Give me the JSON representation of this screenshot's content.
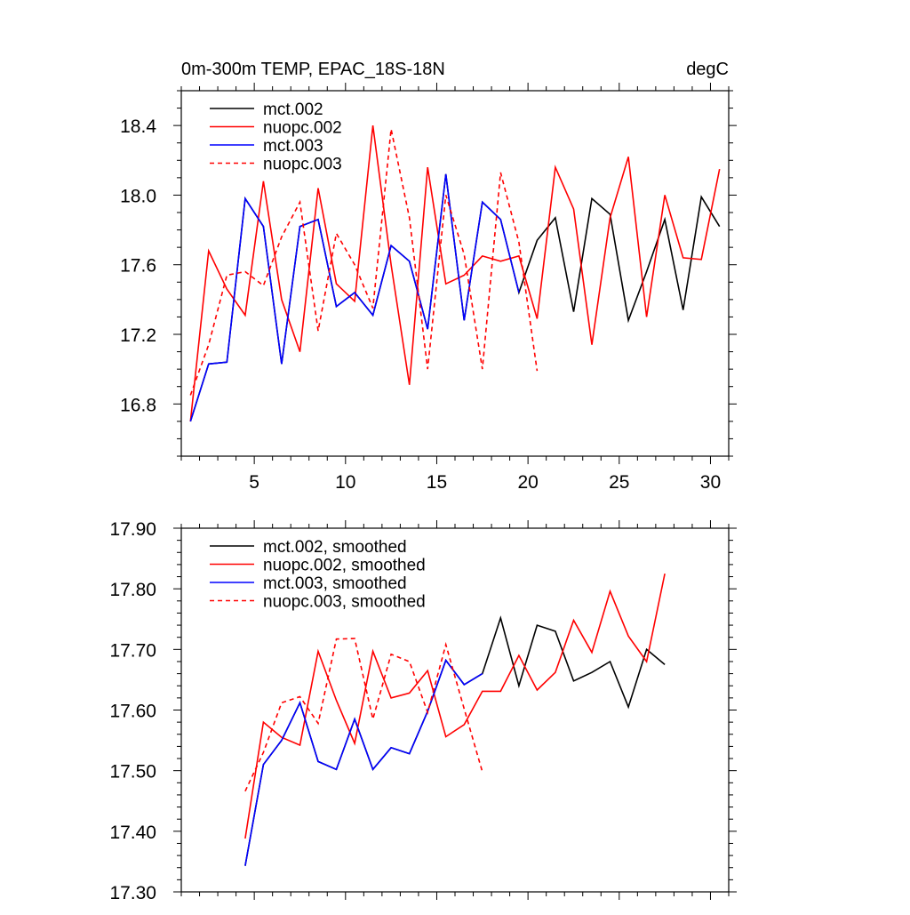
{
  "chart_data": [
    {
      "type": "line",
      "title_left": "0m-300m TEMP, EPAC_18S-18N",
      "title_right": "degC",
      "xlabel": "",
      "ylabel": "",
      "xlim": [
        1,
        31
      ],
      "ylim": [
        16.5,
        18.6
      ],
      "xticks": [
        5,
        10,
        15,
        20,
        25,
        30
      ],
      "xtick_labels": [
        "5",
        "10",
        "15",
        "20",
        "25",
        "30"
      ],
      "yticks": [
        16.8,
        17.2,
        17.6,
        18.0,
        18.4
      ],
      "ytick_labels": [
        "16.8",
        "17.2",
        "17.6",
        "18.0",
        "18.4"
      ],
      "legend_position": "top-left",
      "series": [
        {
          "name": "mct.002",
          "color": "#000000",
          "dash": "solid",
          "x": [
            1.5,
            2.5,
            3.5,
            4.5,
            5.5,
            6.5,
            7.5,
            8.5,
            9.5,
            10.5,
            11.5,
            12.5,
            13.5,
            14.5,
            15.5,
            16.5,
            17.5,
            18.5,
            19.5,
            20.5,
            21.5,
            22.5,
            23.5,
            24.5,
            25.5,
            26.5,
            27.5,
            28.5,
            29.5,
            30.5
          ],
          "values": [
            16.7,
            17.03,
            17.04,
            17.98,
            17.82,
            17.03,
            17.82,
            17.86,
            17.36,
            17.44,
            17.31,
            17.71,
            17.62,
            17.23,
            18.12,
            17.28,
            17.96,
            17.86,
            17.44,
            17.74,
            17.87,
            17.33,
            17.98,
            17.89,
            17.28,
            17.56,
            17.86,
            17.34,
            17.99,
            17.82
          ]
        },
        {
          "name": "nuopc.002",
          "color": "#ff0000",
          "dash": "solid",
          "x": [
            1.5,
            2.5,
            3.5,
            4.5,
            5.5,
            6.5,
            7.5,
            8.5,
            9.5,
            10.5,
            11.5,
            12.5,
            13.5,
            14.5,
            15.5,
            16.5,
            17.5,
            18.5,
            19.5,
            20.5,
            21.5,
            22.5,
            23.5,
            24.5,
            25.5,
            26.5,
            27.5,
            28.5,
            29.5,
            30.5
          ],
          "values": [
            16.7,
            17.68,
            17.46,
            17.31,
            18.08,
            17.4,
            17.1,
            18.04,
            17.49,
            17.39,
            18.4,
            17.6,
            16.91,
            18.16,
            17.49,
            17.54,
            17.65,
            17.62,
            17.65,
            17.29,
            18.16,
            17.92,
            17.14,
            17.87,
            18.22,
            17.3,
            18.0,
            17.64,
            17.63,
            18.15
          ]
        },
        {
          "name": "mct.003",
          "color": "#0000ff",
          "dash": "solid",
          "x": [
            1.5,
            2.5,
            3.5,
            4.5,
            5.5,
            6.5,
            7.5,
            8.5,
            9.5,
            10.5,
            11.5,
            12.5,
            13.5,
            14.5,
            15.5,
            16.5,
            17.5,
            18.5,
            19.5
          ],
          "values": [
            16.7,
            17.03,
            17.04,
            17.98,
            17.82,
            17.03,
            17.82,
            17.86,
            17.36,
            17.44,
            17.31,
            17.71,
            17.62,
            17.23,
            18.12,
            17.28,
            17.96,
            17.86,
            17.44
          ]
        },
        {
          "name": "nuopc.003",
          "color": "#ff0000",
          "dash": "dashed",
          "x": [
            1.5,
            2.5,
            3.5,
            4.5,
            5.5,
            6.5,
            7.5,
            8.5,
            9.5,
            10.5,
            11.5,
            12.5,
            13.5,
            14.5,
            15.5,
            16.5,
            17.5,
            18.5,
            19.5,
            20.5
          ],
          "values": [
            16.85,
            17.14,
            17.54,
            17.56,
            17.48,
            17.76,
            17.96,
            17.22,
            17.78,
            17.6,
            17.35,
            18.38,
            17.87,
            17.0,
            18.0,
            17.66,
            17.0,
            18.13,
            17.73,
            16.99
          ]
        }
      ]
    },
    {
      "type": "line",
      "title_left": "",
      "title_right": "",
      "xlabel": "",
      "ylabel": "",
      "xlim": [
        1,
        31
      ],
      "ylim": [
        17.3,
        17.9
      ],
      "xticks": [
        5,
        10,
        15,
        20,
        25,
        30
      ],
      "xtick_labels": [],
      "yticks": [
        17.3,
        17.4,
        17.5,
        17.6,
        17.7,
        17.8,
        17.9
      ],
      "ytick_labels": [
        "17.30",
        "17.40",
        "17.50",
        "17.60",
        "17.70",
        "17.80",
        "17.90"
      ],
      "legend_position": "top-left",
      "series": [
        {
          "name": "mct.002, smoothed",
          "color": "#000000",
          "dash": "solid",
          "x": [
            4.5,
            5.5,
            6.5,
            7.5,
            8.5,
            9.5,
            10.5,
            11.5,
            12.5,
            13.5,
            14.5,
            15.5,
            16.5,
            17.5,
            18.5,
            19.5,
            20.5,
            21.5,
            22.5,
            23.5,
            24.5,
            25.5,
            26.5,
            27.5
          ],
          "values": [
            17.343,
            17.51,
            17.55,
            17.612,
            17.515,
            17.502,
            17.585,
            17.502,
            17.538,
            17.528,
            17.598,
            17.682,
            17.642,
            17.66,
            17.752,
            17.64,
            17.74,
            17.73,
            17.648,
            17.662,
            17.68,
            17.605,
            17.7,
            17.675
          ]
        },
        {
          "name": "nuopc.002, smoothed",
          "color": "#ff0000",
          "dash": "solid",
          "x": [
            4.5,
            5.5,
            6.5,
            7.5,
            8.5,
            9.5,
            10.5,
            11.5,
            12.5,
            13.5,
            14.5,
            15.5,
            16.5,
            17.5,
            18.5,
            19.5,
            20.5,
            21.5,
            22.5,
            23.5,
            24.5,
            25.5,
            26.5,
            27.5
          ],
          "values": [
            17.388,
            17.58,
            17.555,
            17.542,
            17.697,
            17.616,
            17.545,
            17.697,
            17.62,
            17.628,
            17.665,
            17.556,
            17.576,
            17.631,
            17.631,
            17.69,
            17.633,
            17.662,
            17.748,
            17.695,
            17.796,
            17.722,
            17.68,
            17.825
          ]
        },
        {
          "name": "mct.003, smoothed",
          "color": "#0000ff",
          "dash": "solid",
          "x": [
            4.5,
            5.5,
            6.5,
            7.5,
            8.5,
            9.5,
            10.5,
            11.5,
            12.5,
            13.5,
            14.5,
            15.5,
            16.5,
            17.5
          ],
          "values": [
            17.343,
            17.51,
            17.55,
            17.612,
            17.515,
            17.502,
            17.585,
            17.502,
            17.538,
            17.528,
            17.598,
            17.682,
            17.642,
            17.66
          ]
        },
        {
          "name": "nuopc.003, smoothed",
          "color": "#ff0000",
          "dash": "dashed",
          "x": [
            4.5,
            5.5,
            6.5,
            7.5,
            8.5,
            9.5,
            10.5,
            11.5,
            12.5,
            13.5,
            14.5,
            15.5,
            16.5,
            17.5
          ],
          "values": [
            17.466,
            17.53,
            17.612,
            17.622,
            17.578,
            17.717,
            17.718,
            17.585,
            17.692,
            17.68,
            17.596,
            17.708,
            17.602,
            17.498
          ]
        }
      ]
    }
  ]
}
